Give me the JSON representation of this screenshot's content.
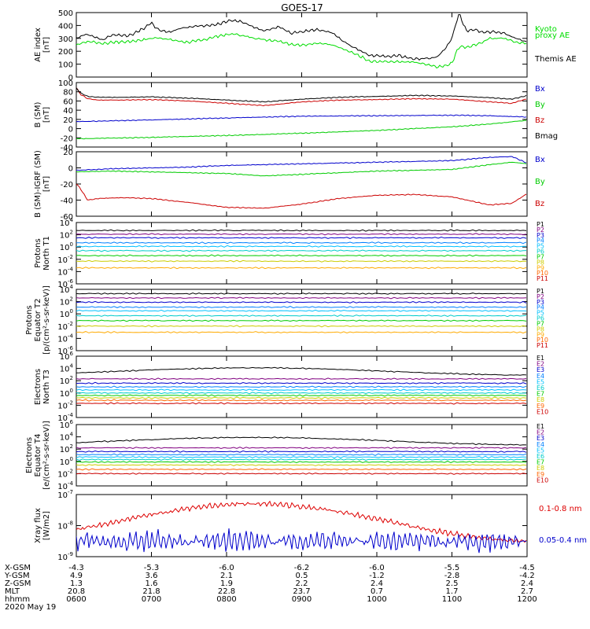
{
  "title": "GOES-17",
  "date_label": "2020 May 19",
  "footer": {
    "rows": [
      {
        "label": "X-GSM",
        "values": [
          "-4.3",
          "-5.3",
          "-6.0",
          "-6.2",
          "-6.0",
          "-5.5",
          "-4.5"
        ]
      },
      {
        "label": "Y-GSM",
        "values": [
          "4.9",
          "3.6",
          "2.1",
          "0.5",
          "-1.2",
          "-2.8",
          "-4.2"
        ]
      },
      {
        "label": "Z-GSM",
        "values": [
          "1.3",
          "1.6",
          "1.9",
          "2.2",
          "2.4",
          "2.5",
          "2.4"
        ]
      },
      {
        "label": "MLT",
        "values": [
          "20.8",
          "21.8",
          "22.8",
          "23.7",
          "0.7",
          "1.7",
          "2.7"
        ]
      },
      {
        "label": "hhmm",
        "values": [
          "0600",
          "0700",
          "0800",
          "0900",
          "1000",
          "1100",
          "1200"
        ]
      }
    ]
  },
  "chart_data": [
    {
      "type": "line",
      "ylabel": [
        "AE index",
        "[nT]"
      ],
      "ylim": [
        0,
        500
      ],
      "yticks": [
        "0",
        "100",
        "200",
        "300",
        "400",
        "500"
      ],
      "x_range_hhmm": [
        "0600",
        "1200"
      ],
      "series": [
        {
          "name": "Kyoto proxy AE",
          "legend_lines": [
            "Kyoto",
            "proxy AE"
          ],
          "color": "#00dd00",
          "x": [
            0,
            0.1,
            0.2,
            0.35,
            0.5,
            0.7,
            0.9,
            1.0,
            1.1,
            1.25,
            1.4,
            1.5,
            1.7,
            1.9,
            2.1,
            2.3,
            2.5,
            2.7,
            2.85,
            3.0,
            3.2,
            3.4,
            3.6,
            3.8,
            3.9,
            4.1,
            4.3,
            4.5,
            4.7,
            4.8,
            4.9,
            5.0,
            5.05,
            5.1,
            5.2,
            5.35,
            5.5,
            5.7,
            5.85,
            6.0
          ],
          "y": [
            250,
            270,
            275,
            260,
            270,
            275,
            290,
            300,
            305,
            290,
            275,
            270,
            290,
            320,
            335,
            310,
            290,
            280,
            255,
            245,
            265,
            250,
            205,
            155,
            120,
            120,
            120,
            115,
            95,
            80,
            85,
            110,
            180,
            240,
            230,
            255,
            300,
            300,
            270,
            260
          ]
        },
        {
          "name": "Themis AE",
          "legend_lines": [
            "Themis AE"
          ],
          "color": "#000000",
          "x": [
            0,
            0.1,
            0.2,
            0.35,
            0.5,
            0.7,
            0.9,
            1.0,
            1.1,
            1.25,
            1.4,
            1.5,
            1.7,
            1.9,
            2.05,
            2.2,
            2.35,
            2.5,
            2.7,
            2.85,
            3.0,
            3.2,
            3.4,
            3.6,
            3.8,
            3.9,
            4.1,
            4.3,
            4.5,
            4.7,
            4.8,
            4.9,
            5.0,
            5.05,
            5.1,
            5.15,
            5.2,
            5.3,
            5.4,
            5.55,
            5.7,
            5.85,
            6.0
          ],
          "y": [
            300,
            330,
            320,
            290,
            330,
            320,
            380,
            420,
            360,
            350,
            380,
            390,
            400,
            410,
            440,
            430,
            390,
            360,
            390,
            340,
            350,
            370,
            345,
            260,
            200,
            170,
            160,
            165,
            140,
            145,
            155,
            210,
            300,
            410,
            500,
            410,
            360,
            370,
            350,
            350,
            340,
            300,
            270
          ]
        }
      ]
    },
    {
      "type": "line",
      "ylabel": [
        "B (SM)",
        "[nT]"
      ],
      "ylim": [
        -40,
        100
      ],
      "yticks": [
        "-40",
        "-20",
        "0",
        "20",
        "40",
        "60",
        "80",
        "100"
      ],
      "series": [
        {
          "name": "Bx",
          "color": "#0000cc",
          "x": [
            0,
            1,
            2,
            3,
            4,
            5,
            5.5,
            6.0
          ],
          "y": [
            15,
            19,
            23,
            27,
            28,
            29,
            28,
            25
          ]
        },
        {
          "name": "By",
          "color": "#00cc00",
          "x": [
            0,
            1,
            2,
            3,
            4,
            5,
            5.5,
            6.0
          ],
          "y": [
            -22,
            -19,
            -15,
            -10,
            -4,
            4,
            10,
            18
          ]
        },
        {
          "name": "Bz",
          "color": "#cc0000",
          "x": [
            0,
            0.05,
            0.15,
            0.3,
            0.6,
            1.0,
            1.5,
            2.0,
            2.5,
            3.0,
            3.5,
            4.0,
            4.5,
            5.0,
            5.5,
            5.8,
            6.0
          ],
          "y": [
            90,
            75,
            65,
            62,
            62,
            63,
            60,
            55,
            50,
            58,
            62,
            63,
            65,
            64,
            58,
            55,
            65
          ]
        },
        {
          "name": "Bmag",
          "color": "#000000",
          "x": [
            0,
            0.05,
            0.15,
            0.3,
            0.6,
            1.0,
            1.5,
            2.0,
            2.5,
            3.0,
            3.5,
            4.0,
            4.5,
            5.0,
            5.5,
            5.8,
            6.0
          ],
          "y": [
            88,
            78,
            70,
            68,
            68,
            69,
            66,
            62,
            58,
            64,
            68,
            70,
            72,
            71,
            67,
            64,
            72
          ]
        }
      ]
    },
    {
      "type": "line",
      "ylabel": [
        "B (SM)-IGRF (SM)",
        "[nT]"
      ],
      "ylim": [
        -60,
        20
      ],
      "yticks": [
        "-60",
        "-40",
        "-20",
        "0",
        "20"
      ],
      "series": [
        {
          "name": "Bx",
          "color": "#0000cc",
          "x": [
            0,
            0.5,
            1,
            1.5,
            2,
            2.5,
            3,
            3.5,
            4,
            4.5,
            5,
            5.5,
            5.8,
            6.0
          ],
          "y": [
            -3,
            -1,
            0,
            1,
            3,
            4,
            5,
            6,
            7,
            8,
            9,
            13,
            14,
            6
          ]
        },
        {
          "name": "By",
          "color": "#00cc00",
          "x": [
            0,
            0.5,
            1,
            1.5,
            2,
            2.5,
            3,
            3.5,
            4,
            4.5,
            5,
            5.5,
            5.8,
            6.0
          ],
          "y": [
            -5,
            -4,
            -5,
            -6,
            -7,
            -10,
            -8,
            -6,
            -4,
            -3,
            -2,
            4,
            7,
            5
          ]
        },
        {
          "name": "Bz",
          "color": "#cc0000",
          "x": [
            0,
            0.05,
            0.15,
            0.3,
            0.6,
            1.0,
            1.5,
            2.0,
            2.5,
            3.0,
            3.5,
            4.0,
            4.5,
            5.0,
            5.5,
            5.8,
            6.0
          ],
          "y": [
            -20,
            -25,
            -40,
            -38,
            -37,
            -38,
            -43,
            -49,
            -50,
            -45,
            -38,
            -34,
            -33,
            -36,
            -46,
            -44,
            -32
          ]
        }
      ]
    },
    {
      "type": "line",
      "yscale": "log",
      "ylabel": [
        "Protons",
        "North T1"
      ],
      "ylim_exp": [
        -6,
        4
      ],
      "ytick_exps": [
        -6,
        -4,
        -2,
        0,
        2,
        4
      ],
      "series": [
        {
          "name": "P1",
          "color": "#000000",
          "log_level": 2.7
        },
        {
          "name": "P2",
          "color": "#800080",
          "log_level": 2.1
        },
        {
          "name": "P3",
          "color": "#0000cc",
          "log_level": 1.5
        },
        {
          "name": "P4",
          "color": "#0080ff",
          "log_level": 0.7
        },
        {
          "name": "P5",
          "color": "#00c0ff",
          "log_level": 0.1
        },
        {
          "name": "P6",
          "color": "#00cccc",
          "log_level": -0.6
        },
        {
          "name": "P7",
          "color": "#00cc00",
          "log_level": -1.4
        },
        {
          "name": "P8",
          "color": "#cccc00",
          "log_level": -2.3
        },
        {
          "name": "P9",
          "color": "#ffaa00",
          "log_level": -3.4
        },
        {
          "name": "P10",
          "color": "#ff6600",
          "log_level": null
        },
        {
          "name": "P11",
          "color": "#cc0000",
          "log_level": null
        }
      ]
    },
    {
      "type": "line",
      "yscale": "log",
      "ylabel": [
        "Protons",
        "Equator T2",
        "[p/(cm²-s-sr-keV)]"
      ],
      "ylim_exp": [
        -6,
        4
      ],
      "ytick_exps": [
        -6,
        -4,
        -2,
        0,
        2,
        4
      ],
      "series": [
        {
          "name": "P1",
          "color": "#000000",
          "log_level": 3.3
        },
        {
          "name": "P2",
          "color": "#800080",
          "log_level": 2.6
        },
        {
          "name": "P3",
          "color": "#0000cc",
          "log_level": 1.9
        },
        {
          "name": "P4",
          "color": "#0080ff",
          "log_level": 1.1
        },
        {
          "name": "P5",
          "color": "#00c0ff",
          "log_level": 0.5
        },
        {
          "name": "P6",
          "color": "#00cccc",
          "log_level": -0.3
        },
        {
          "name": "P7",
          "color": "#00cc00",
          "log_level": -1.1
        },
        {
          "name": "P8",
          "color": "#cccc00",
          "log_level": -2.0
        },
        {
          "name": "P9",
          "color": "#ffaa00",
          "log_level": -3.0
        },
        {
          "name": "P10",
          "color": "#ff6600",
          "log_level": null
        },
        {
          "name": "P11",
          "color": "#cc0000",
          "log_level": null
        }
      ]
    },
    {
      "type": "line",
      "yscale": "log",
      "ylabel": [
        "Electrons",
        "North T3"
      ],
      "ylim_exp": [
        -4,
        6
      ],
      "ytick_exps": [
        -4,
        -2,
        0,
        2,
        4,
        6
      ],
      "series": [
        {
          "name": "E1",
          "color": "#000000",
          "log_level": 3.5
        },
        {
          "name": "E2",
          "color": "#800080",
          "log_level": 2.3
        },
        {
          "name": "E3",
          "color": "#0000cc",
          "log_level": 1.6
        },
        {
          "name": "E4",
          "color": "#0080ff",
          "log_level": 1.0
        },
        {
          "name": "E5",
          "color": "#00c0ff",
          "log_level": 0.5
        },
        {
          "name": "E6",
          "color": "#00cccc",
          "log_level": 0.0
        },
        {
          "name": "E7",
          "color": "#00cc00",
          "log_level": -0.4
        },
        {
          "name": "E8",
          "color": "#cccc00",
          "log_level": -0.8
        },
        {
          "name": "E9",
          "color": "#ff6600",
          "log_level": -1.2
        },
        {
          "name": "E10",
          "color": "#cc0000",
          "log_level": -1.7
        }
      ]
    },
    {
      "type": "line",
      "yscale": "log",
      "ylabel": [
        "Electrons",
        "Equator T4",
        "[e/(cm²-s-sr-keV)]"
      ],
      "ylim_exp": [
        -4,
        6
      ],
      "ytick_exps": [
        -4,
        -2,
        0,
        2,
        4,
        6
      ],
      "series": [
        {
          "name": "E1",
          "color": "#000000",
          "log_level": 3.3
        },
        {
          "name": "E2",
          "color": "#800080",
          "log_level": 2.2
        },
        {
          "name": "E3",
          "color": "#0000cc",
          "log_level": 1.6
        },
        {
          "name": "E4",
          "color": "#0080ff",
          "log_level": 1.1
        },
        {
          "name": "E5",
          "color": "#00c0ff",
          "log_level": 0.7
        },
        {
          "name": "E6",
          "color": "#00cccc",
          "log_level": 0.3
        },
        {
          "name": "E7",
          "color": "#00cc00",
          "log_level": -0.1
        },
        {
          "name": "E8",
          "color": "#cccc00",
          "log_level": -0.6
        },
        {
          "name": "E9",
          "color": "#ff6600",
          "log_level": -1.3
        },
        {
          "name": "E10",
          "color": "#cc0000",
          "log_level": -2.0
        }
      ]
    },
    {
      "type": "line",
      "yscale": "log",
      "ylabel": [
        "Xray flux",
        "[W/m2]"
      ],
      "ylim_exp": [
        -9,
        -7
      ],
      "ytick_exps": [
        -9,
        -8,
        -7
      ],
      "series": [
        {
          "name": "0.1-0.8 nm",
          "color": "#dd0000",
          "log_level": -7.9
        },
        {
          "name": "0.05-0.4 nm",
          "color": "#0000cc",
          "log_level": -8.5
        }
      ]
    }
  ]
}
